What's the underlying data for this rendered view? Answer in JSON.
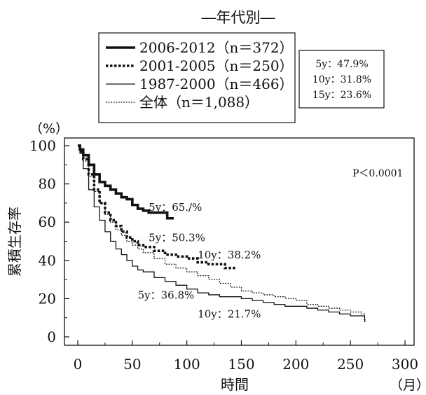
{
  "chart_data": {
    "type": "line",
    "title": "―年代別―",
    "xlabel": "時間",
    "ylabel": "累積生存率",
    "x_unit": "（月）",
    "y_unit": "（%）",
    "xlim": [
      0,
      300
    ],
    "ylim": [
      0,
      100
    ],
    "x_ticks": [
      0,
      50,
      100,
      150,
      200,
      250,
      300
    ],
    "y_ticks": [
      0,
      20,
      40,
      60,
      80,
      100
    ],
    "x_tick_labels": [
      "0",
      "50",
      "100",
      "150",
      "200",
      "250",
      "300"
    ],
    "y_tick_labels": [
      "0",
      "20",
      "40",
      "60",
      "80",
      "100"
    ],
    "grid": false,
    "legend_position": "top",
    "p_value": "P＜0.0001",
    "overall_stats": [
      "5y：47.9%",
      "10y：31.8%",
      "15y：23.6%"
    ],
    "series": [
      {
        "name": "2006-2012（n＝372）",
        "style": "thick-solid",
        "x": [
          0,
          2,
          5,
          10,
          15,
          20,
          25,
          30,
          35,
          40,
          45,
          50,
          55,
          60,
          65,
          70,
          75,
          80,
          82,
          85,
          88
        ],
        "y": [
          100,
          98,
          95,
          90,
          85,
          81,
          79,
          77,
          75,
          73,
          72,
          69,
          67,
          66,
          65,
          65,
          65,
          65,
          62,
          62,
          62
        ]
      },
      {
        "name": "2001-2005（n＝250）",
        "style": "thick-dotted",
        "x": [
          0,
          2,
          5,
          10,
          15,
          20,
          25,
          30,
          35,
          40,
          45,
          50,
          55,
          60,
          70,
          80,
          90,
          100,
          110,
          120,
          130,
          135,
          140,
          145
        ],
        "y": [
          100,
          97,
          93,
          85,
          77,
          70,
          65,
          61,
          58,
          55,
          52,
          50,
          48,
          47,
          45,
          43,
          42,
          41,
          39,
          38,
          38,
          36,
          36,
          36
        ]
      },
      {
        "name": "1987-2000（n＝466）",
        "style": "thin-solid",
        "x": [
          0,
          2,
          5,
          10,
          15,
          20,
          25,
          30,
          35,
          40,
          45,
          50,
          55,
          60,
          70,
          80,
          90,
          100,
          110,
          120,
          130,
          140,
          150,
          160,
          170,
          180,
          190,
          200,
          210,
          220,
          230,
          240,
          250,
          260,
          263,
          264
        ],
        "y": [
          100,
          96,
          88,
          77,
          68,
          61,
          55,
          50,
          46,
          43,
          40,
          37,
          35,
          34,
          31,
          29,
          27,
          25,
          23,
          22,
          21,
          21,
          20,
          19,
          18,
          17,
          16,
          16,
          15,
          14,
          13,
          12,
          11,
          11,
          8,
          8
        ]
      },
      {
        "name": "全体（n＝1,088）",
        "style": "thin-dotted",
        "x": [
          0,
          2,
          5,
          10,
          15,
          20,
          25,
          30,
          35,
          40,
          45,
          50,
          55,
          60,
          70,
          80,
          90,
          100,
          110,
          120,
          130,
          140,
          150,
          160,
          170,
          180,
          190,
          200,
          210,
          220,
          230,
          240,
          250,
          260,
          263,
          264
        ],
        "y": [
          100,
          97,
          92,
          84,
          76,
          70,
          64,
          60,
          56,
          53,
          50,
          48,
          46,
          44,
          41,
          38,
          36,
          34,
          32,
          30,
          28,
          26,
          24,
          23,
          22,
          21,
          20,
          19,
          17,
          16,
          15,
          14,
          13,
          12,
          9,
          9
        ]
      }
    ],
    "annotations": [
      {
        "text": "5y：65./%",
        "x": 65,
        "y": 66
      },
      {
        "text": "5y：50.3%",
        "x": 65,
        "y": 50
      },
      {
        "text": "10y：38.2%",
        "x": 110,
        "y": 41
      },
      {
        "text": "5y：36.8%",
        "x": 55,
        "y": 20
      },
      {
        "text": "10y：21.7%",
        "x": 110,
        "y": 10
      }
    ]
  }
}
